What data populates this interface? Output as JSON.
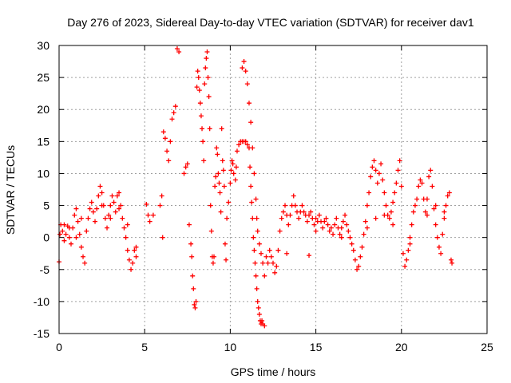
{
  "chart_data": {
    "type": "scatter",
    "title": "Day 276 of 2023, Sidereal Day-to-day VTEC variation (SDTVAR) for receiver dav1",
    "xlabel": "GPS time / hours",
    "ylabel": "SDTVAR / TECUs",
    "xlim": [
      0,
      25
    ],
    "ylim": [
      -15,
      30
    ],
    "xticks": [
      0,
      5,
      10,
      15,
      20,
      25
    ],
    "yticks": [
      -15,
      -10,
      -5,
      0,
      5,
      10,
      15,
      20,
      25,
      30
    ],
    "grid": true,
    "marker": "+",
    "color": "#ff0000",
    "series": [
      {
        "name": "SDTVAR",
        "points": [
          [
            0.0,
            -3.8
          ],
          [
            0.05,
            0.5
          ],
          [
            0.1,
            2.0
          ],
          [
            0.2,
            1.0
          ],
          [
            0.3,
            -0.5
          ],
          [
            0.4,
            0.5
          ],
          [
            0.5,
            1.8
          ],
          [
            0.6,
            0.0
          ],
          [
            0.7,
            -1.0
          ],
          [
            0.8,
            1.5
          ],
          [
            0.9,
            3.5
          ],
          [
            1.0,
            4.5
          ],
          [
            1.1,
            2.5
          ],
          [
            1.2,
            0.5
          ],
          [
            1.3,
            -1.5
          ],
          [
            1.4,
            -3.0
          ],
          [
            1.5,
            -4.0
          ],
          [
            1.6,
            1.0
          ],
          [
            1.7,
            3.0
          ],
          [
            1.8,
            4.5
          ],
          [
            1.9,
            5.5
          ],
          [
            2.0,
            4.0
          ],
          [
            2.1,
            2.5
          ],
          [
            2.2,
            4.5
          ],
          [
            2.3,
            6.5
          ],
          [
            2.4,
            8.0
          ],
          [
            2.5,
            7.0
          ],
          [
            2.6,
            5.0
          ],
          [
            2.7,
            3.0
          ],
          [
            2.8,
            1.5
          ],
          [
            2.9,
            3.5
          ],
          [
            3.0,
            5.0
          ],
          [
            3.1,
            6.5
          ],
          [
            3.2,
            5.5
          ],
          [
            3.3,
            4.0
          ],
          [
            3.4,
            6.5
          ],
          [
            3.5,
            7.0
          ],
          [
            3.6,
            5.0
          ],
          [
            3.7,
            3.0
          ],
          [
            3.8,
            1.5
          ],
          [
            3.9,
            0.0
          ],
          [
            4.0,
            -2.0
          ],
          [
            4.1,
            -3.5
          ],
          [
            4.2,
            -5.0
          ],
          [
            4.3,
            -4.0
          ],
          [
            4.4,
            -2.0
          ],
          [
            4.5,
            -1.5
          ],
          [
            5.1,
            5.2
          ],
          [
            5.2,
            3.5
          ],
          [
            5.3,
            2.5
          ],
          [
            5.5,
            3.5
          ],
          [
            5.9,
            5.0
          ],
          [
            6.0,
            6.5
          ],
          [
            6.05,
            0.0
          ],
          [
            6.1,
            16.5
          ],
          [
            6.2,
            15.5
          ],
          [
            6.3,
            13.5
          ],
          [
            6.4,
            12.0
          ],
          [
            6.5,
            15.0
          ],
          [
            6.6,
            18.5
          ],
          [
            6.7,
            19.5
          ],
          [
            6.8,
            20.5
          ],
          [
            6.9,
            29.5
          ],
          [
            7.0,
            29.0
          ],
          [
            7.3,
            10.0
          ],
          [
            7.4,
            11.0
          ],
          [
            7.5,
            11.5
          ],
          [
            7.6,
            2.0
          ],
          [
            7.7,
            -1.0
          ],
          [
            7.75,
            -3.0
          ],
          [
            7.8,
            -6.0
          ],
          [
            7.85,
            -8.0
          ],
          [
            7.9,
            -10.5
          ],
          [
            7.95,
            -11.0
          ],
          [
            8.0,
            -10.0
          ],
          [
            8.05,
            23.5
          ],
          [
            8.1,
            26.0
          ],
          [
            8.15,
            25.0
          ],
          [
            8.2,
            23.0
          ],
          [
            8.25,
            21.0
          ],
          [
            8.3,
            19.0
          ],
          [
            8.35,
            17.0
          ],
          [
            8.4,
            15.0
          ],
          [
            8.45,
            12.0
          ],
          [
            8.5,
            24.0
          ],
          [
            8.55,
            26.5
          ],
          [
            8.6,
            28.0
          ],
          [
            8.65,
            29.0
          ],
          [
            8.7,
            25.0
          ],
          [
            8.75,
            22.0
          ],
          [
            8.8,
            17.0
          ],
          [
            8.85,
            5.0
          ],
          [
            8.9,
            1.0
          ],
          [
            8.95,
            -3.0
          ],
          [
            9.0,
            -4.0
          ],
          [
            9.05,
            -3.0
          ],
          [
            9.1,
            8.0
          ],
          [
            9.15,
            9.5
          ],
          [
            9.2,
            14.0
          ],
          [
            9.25,
            13.0
          ],
          [
            9.3,
            10.0
          ],
          [
            9.35,
            8.5
          ],
          [
            9.4,
            7.0
          ],
          [
            9.45,
            4.0
          ],
          [
            9.5,
            17.0
          ],
          [
            9.55,
            12.0
          ],
          [
            9.6,
            10.5
          ],
          [
            9.65,
            8.0
          ],
          [
            9.7,
            -1.0
          ],
          [
            9.75,
            -3.5
          ],
          [
            9.8,
            3.0
          ],
          [
            9.9,
            5.5
          ],
          [
            10.0,
            8.5
          ],
          [
            10.05,
            10.5
          ],
          [
            10.1,
            12.0
          ],
          [
            10.15,
            11.5
          ],
          [
            10.2,
            10.0
          ],
          [
            10.3,
            9.0
          ],
          [
            10.35,
            11.0
          ],
          [
            10.4,
            13.5
          ],
          [
            10.5,
            14.5
          ],
          [
            10.6,
            15.0
          ],
          [
            10.7,
            15.0
          ],
          [
            10.8,
            15.0
          ],
          [
            10.9,
            15.0
          ],
          [
            11.0,
            14.5
          ],
          [
            11.1,
            14.0
          ],
          [
            11.15,
            11.0
          ],
          [
            11.2,
            8.0
          ],
          [
            11.25,
            5.5
          ],
          [
            11.3,
            3.0
          ],
          [
            11.35,
            0.0
          ],
          [
            11.4,
            -2.0
          ],
          [
            11.45,
            -4.0
          ],
          [
            11.5,
            -6.0
          ],
          [
            11.55,
            -8.0
          ],
          [
            11.6,
            -10.0
          ],
          [
            11.65,
            -11.0
          ],
          [
            11.7,
            -12.0
          ],
          [
            11.75,
            -13.0
          ],
          [
            11.8,
            -13.5
          ],
          [
            11.85,
            -13.0
          ],
          [
            11.9,
            -13.5
          ],
          [
            12.0,
            -13.8
          ],
          [
            10.7,
            26.5
          ],
          [
            10.8,
            27.5
          ],
          [
            10.9,
            26.0
          ],
          [
            11.0,
            24.0
          ],
          [
            11.1,
            21.0
          ],
          [
            11.2,
            18.0
          ],
          [
            11.3,
            14.0
          ],
          [
            11.4,
            10.0
          ],
          [
            11.5,
            6.0
          ],
          [
            11.55,
            3.0
          ],
          [
            11.6,
            1.0
          ],
          [
            11.7,
            -1.0
          ],
          [
            11.8,
            -2.5
          ],
          [
            11.9,
            -4.0
          ],
          [
            12.0,
            -6.0
          ],
          [
            12.1,
            -3.0
          ],
          [
            12.2,
            -4.0
          ],
          [
            12.3,
            -2.0
          ],
          [
            12.4,
            -3.0
          ],
          [
            12.5,
            -4.0
          ],
          [
            12.6,
            -5.5
          ],
          [
            12.7,
            -4.5
          ],
          [
            12.8,
            -2.0
          ],
          [
            12.9,
            1.0
          ],
          [
            13.0,
            3.0
          ],
          [
            13.1,
            4.0
          ],
          [
            13.2,
            5.0
          ],
          [
            13.3,
            3.5
          ],
          [
            13.4,
            2.0
          ],
          [
            13.5,
            3.5
          ],
          [
            13.6,
            5.0
          ],
          [
            13.7,
            6.5
          ],
          [
            13.8,
            5.0
          ],
          [
            13.9,
            4.0
          ],
          [
            14.0,
            3.0
          ],
          [
            14.1,
            4.0
          ],
          [
            14.2,
            5.0
          ],
          [
            14.3,
            4.0
          ],
          [
            14.4,
            3.5
          ],
          [
            14.5,
            2.5
          ],
          [
            14.6,
            3.5
          ],
          [
            14.7,
            4.0
          ],
          [
            14.8,
            3.0
          ],
          [
            14.9,
            2.0
          ],
          [
            15.0,
            1.0
          ],
          [
            15.1,
            2.5
          ],
          [
            15.2,
            3.5
          ],
          [
            15.3,
            2.5
          ],
          [
            15.4,
            1.5
          ],
          [
            15.5,
            2.5
          ],
          [
            15.6,
            3.0
          ],
          [
            15.7,
            2.0
          ],
          [
            15.8,
            1.0
          ],
          [
            15.9,
            1.5
          ],
          [
            16.0,
            0.5
          ],
          [
            16.1,
            2.0
          ],
          [
            16.2,
            3.0
          ],
          [
            16.3,
            1.5
          ],
          [
            16.4,
            0.5
          ],
          [
            16.5,
            1.5
          ],
          [
            16.6,
            2.5
          ],
          [
            16.7,
            3.5
          ],
          [
            16.8,
            2.0
          ],
          [
            16.9,
            1.0
          ],
          [
            17.0,
            0.0
          ],
          [
            17.1,
            -1.0
          ],
          [
            17.2,
            -2.0
          ],
          [
            17.3,
            -3.5
          ],
          [
            17.4,
            -5.0
          ],
          [
            17.5,
            -4.5
          ],
          [
            17.6,
            -3.0
          ],
          [
            17.7,
            -1.5
          ],
          [
            17.8,
            0.5
          ],
          [
            17.9,
            2.5
          ],
          [
            18.0,
            5.0
          ],
          [
            18.1,
            7.0
          ],
          [
            18.2,
            9.5
          ],
          [
            18.3,
            11.0
          ],
          [
            18.4,
            12.0
          ],
          [
            18.5,
            10.5
          ],
          [
            18.6,
            8.5
          ],
          [
            18.7,
            10.0
          ],
          [
            18.8,
            11.5
          ],
          [
            18.9,
            9.0
          ],
          [
            19.0,
            7.0
          ],
          [
            19.1,
            5.0
          ],
          [
            19.2,
            3.5
          ],
          [
            19.3,
            3.0
          ],
          [
            19.4,
            4.0
          ],
          [
            19.5,
            5.5
          ],
          [
            19.6,
            7.0
          ],
          [
            19.7,
            8.5
          ],
          [
            19.8,
            10.5
          ],
          [
            19.9,
            12.0
          ],
          [
            20.0,
            8.0
          ],
          [
            20.1,
            -2.5
          ],
          [
            20.2,
            -4.5
          ],
          [
            20.3,
            -3.5
          ],
          [
            20.4,
            -2.0
          ],
          [
            20.5,
            0.0
          ],
          [
            20.6,
            2.0
          ],
          [
            20.7,
            4.0
          ],
          [
            20.8,
            5.0
          ],
          [
            20.9,
            6.0
          ],
          [
            21.0,
            8.0
          ],
          [
            21.1,
            9.0
          ],
          [
            21.2,
            8.5
          ],
          [
            21.3,
            6.0
          ],
          [
            21.4,
            4.0
          ],
          [
            21.5,
            6.0
          ],
          [
            21.6,
            9.5
          ],
          [
            21.7,
            10.5
          ],
          [
            21.8,
            8.0
          ],
          [
            21.9,
            4.5
          ],
          [
            22.0,
            2.0
          ],
          [
            22.1,
            0.0
          ],
          [
            22.2,
            -1.5
          ],
          [
            22.3,
            -2.5
          ],
          [
            22.4,
            0.5
          ],
          [
            22.5,
            3.0
          ],
          [
            22.6,
            5.0
          ],
          [
            22.7,
            6.5
          ],
          [
            22.8,
            7.0
          ],
          [
            22.9,
            -3.5
          ],
          [
            22.95,
            -4.0
          ],
          [
            0.3,
            2.0
          ],
          [
            0.6,
            1.5
          ],
          [
            1.0,
            0.0
          ],
          [
            1.3,
            3.0
          ],
          [
            2.5,
            5.0
          ],
          [
            3.0,
            3.0
          ],
          [
            3.5,
            4.5
          ],
          [
            4.0,
            2.0
          ],
          [
            4.5,
            -3.0
          ],
          [
            13.3,
            -2.5
          ],
          [
            14.6,
            -2.8
          ],
          [
            15.0,
            3.0
          ],
          [
            16.5,
            0.0
          ],
          [
            18.0,
            1.5
          ],
          [
            18.5,
            3.0
          ],
          [
            19.0,
            3.5
          ],
          [
            19.5,
            2.0
          ],
          [
            20.5,
            -1.0
          ],
          [
            21.5,
            3.5
          ],
          [
            22.0,
            5.0
          ],
          [
            22.5,
            4.0
          ]
        ]
      }
    ]
  }
}
